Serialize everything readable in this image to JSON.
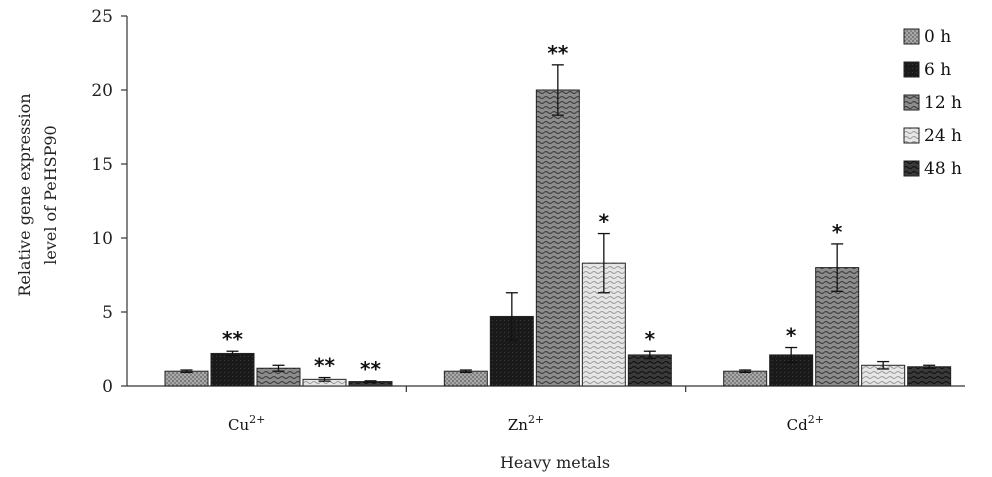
{
  "chart_data": {
    "type": "bar",
    "title": "",
    "ylabel_lines": [
      "Relative gene expression",
      "level of PeHSP90"
    ],
    "xlabel": "Heavy metals",
    "ylim": [
      0,
      25
    ],
    "yticks": [
      0,
      5,
      10,
      15,
      20,
      25
    ],
    "categories": [
      {
        "base": "Cu",
        "sup": "2+"
      },
      {
        "base": "Zn",
        "sup": "2+"
      },
      {
        "base": "Cd",
        "sup": "2+"
      }
    ],
    "legend_position": "top-right",
    "series": [
      {
        "name": "0 h",
        "values": [
          1.0,
          1.0,
          1.0
        ],
        "errors": [
          0.08,
          0.08,
          0.08
        ],
        "significance": [
          "",
          "",
          ""
        ],
        "pattern": "dots"
      },
      {
        "name": "6 h",
        "values": [
          2.2,
          4.7,
          2.1
        ],
        "errors": [
          0.15,
          1.6,
          0.5
        ],
        "significance": [
          "**",
          "",
          "*"
        ],
        "pattern": "solid-dark"
      },
      {
        "name": "12 h",
        "values": [
          1.2,
          20.0,
          8.0
        ],
        "errors": [
          0.2,
          1.7,
          1.6
        ],
        "significance": [
          "",
          "**",
          "*"
        ],
        "pattern": "wavy"
      },
      {
        "name": "24 h",
        "values": [
          0.45,
          8.3,
          1.4
        ],
        "errors": [
          0.12,
          2.0,
          0.25
        ],
        "significance": [
          "**",
          "*",
          ""
        ],
        "pattern": "light-wavy"
      },
      {
        "name": "48 h",
        "values": [
          0.3,
          2.1,
          1.3
        ],
        "errors": [
          0.05,
          0.25,
          0.1
        ],
        "significance": [
          "**",
          "*",
          ""
        ],
        "pattern": "dark-wavy"
      }
    ]
  }
}
